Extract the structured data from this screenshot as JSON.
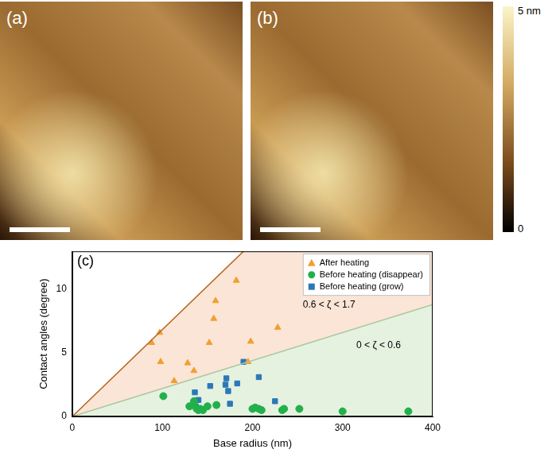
{
  "chart_data": {
    "type": "scatter",
    "panel_label": "(c)",
    "x_label": "Base radius (nm)",
    "y_label": "Contact angles (degree)",
    "xlim": [
      0,
      400
    ],
    "xticks": [
      0,
      100,
      200,
      300,
      400
    ],
    "ylim": [
      0,
      13
    ],
    "yticks": [
      0,
      5,
      10
    ],
    "grid": false,
    "legend": "upper right",
    "series": [
      {
        "name": "After heating",
        "color": "#f0a030",
        "marker": "triangle",
        "x": [
          88,
          97,
          98,
          113,
          128,
          135,
          152,
          157,
          159,
          182,
          195,
          198,
          228
        ],
        "values": [
          5.8,
          6.6,
          4.3,
          2.8,
          4.2,
          3.6,
          5.8,
          7.7,
          9.1,
          10.7,
          4.3,
          5.9,
          7.0
        ]
      },
      {
        "name": "Before heating (disappear)",
        "color": "#22b04b",
        "marker": "circle",
        "x": [
          101,
          130,
          135,
          135,
          138,
          140,
          142,
          145,
          150,
          160,
          200,
          203,
          207,
          210,
          233,
          235,
          252,
          300,
          373
        ],
        "values": [
          1.6,
          0.8,
          0.9,
          1.2,
          0.6,
          0.5,
          0.6,
          0.5,
          0.8,
          0.9,
          0.6,
          0.7,
          0.6,
          0.5,
          0.5,
          0.6,
          0.6,
          0.4,
          0.4
        ]
      },
      {
        "name": "Before heating (grow)",
        "color": "#2b78b8",
        "marker": "square",
        "x": [
          136,
          137,
          140,
          153,
          160,
          170,
          171,
          173,
          175,
          183,
          190,
          207,
          225
        ],
        "values": [
          1.9,
          0.8,
          1.3,
          2.4,
          0.9,
          2.5,
          3.0,
          2.0,
          1.0,
          2.6,
          4.3,
          3.1,
          1.2
        ]
      }
    ],
    "reference_lines": [
      {
        "color": "#b5651d",
        "x": [
          0,
          190
        ],
        "values": [
          0,
          13
        ]
      },
      {
        "color": "#a9c89e",
        "x": [
          0,
          400
        ],
        "values": [
          0,
          8.8
        ]
      }
    ],
    "annotations": [
      {
        "text": "0.6 < ζ < 1.7",
        "x": 285,
        "y": 8.8
      },
      {
        "text": "0 < ζ < 0.6",
        "x": 340,
        "y": 5.6
      }
    ]
  },
  "images": [
    {
      "label": "(a)"
    },
    {
      "label": "(b)"
    }
  ],
  "colorbar": {
    "range": [
      0,
      5
    ],
    "ticks": [
      {
        "value": 5,
        "label": "5 nm"
      },
      0
    ]
  }
}
